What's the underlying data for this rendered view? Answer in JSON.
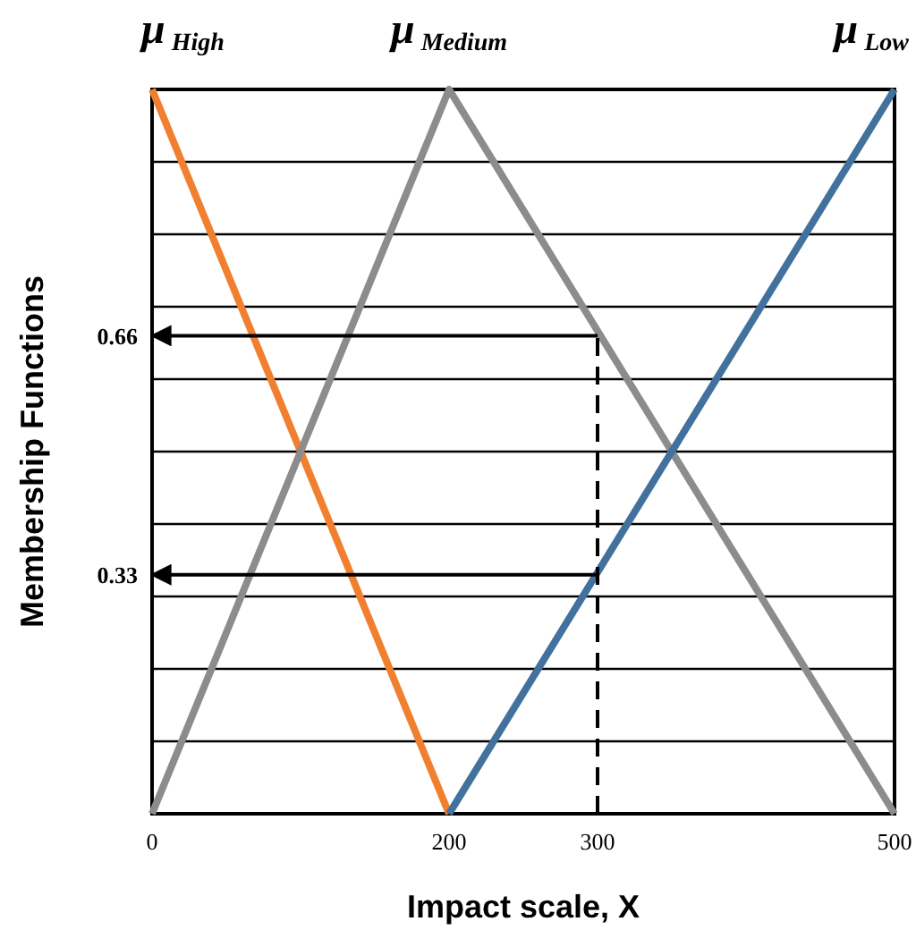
{
  "chart_data": {
    "type": "line",
    "xlabel": "Impact scale, X",
    "ylabel": "Membership Functions",
    "xlim": [
      0,
      500
    ],
    "ylim": [
      0,
      1
    ],
    "xticks": [
      0,
      200,
      300,
      500
    ],
    "yticks": [
      {
        "value": 0.1,
        "label": null
      },
      {
        "value": 0.2,
        "label": null
      },
      {
        "value": 0.3,
        "label": null
      },
      {
        "value": 0.33,
        "label": "0.33"
      },
      {
        "value": 0.4,
        "label": null
      },
      {
        "value": 0.5,
        "label": null
      },
      {
        "value": 0.6,
        "label": null
      },
      {
        "value": 0.66,
        "label": "0.66"
      },
      {
        "value": 0.7,
        "label": null
      },
      {
        "value": 0.8,
        "label": null
      },
      {
        "value": 0.9,
        "label": null
      }
    ],
    "grid": "y",
    "marker": "none",
    "line_style": "solid",
    "series": [
      {
        "name": "μ$_{High}$",
        "color": "#f07f2f",
        "x": [
          0,
          200
        ],
        "values": [
          1,
          0
        ]
      },
      {
        "name": "μ$_{Medium}$",
        "color": "#8c8c8c",
        "x": [
          0,
          200,
          500
        ],
        "values": [
          0,
          1,
          0
        ]
      },
      {
        "name": "μ$_{Low}$",
        "color": "#41719c",
        "x": [
          200,
          500
        ],
        "values": [
          0,
          1
        ]
      },
      {
        "color": "#000000",
        "x": [
          300,
          300
        ],
        "values": [
          0,
          0.66
        ],
        "line_style": "dashed"
      },
      {
        "color": "#000000",
        "x": [
          300,
          0
        ],
        "values": [
          0.66,
          0.66
        ]
      },
      {
        "color": "#000000",
        "x": [
          300,
          0
        ],
        "values": [
          0.33,
          0.33
        ]
      }
    ]
  }
}
